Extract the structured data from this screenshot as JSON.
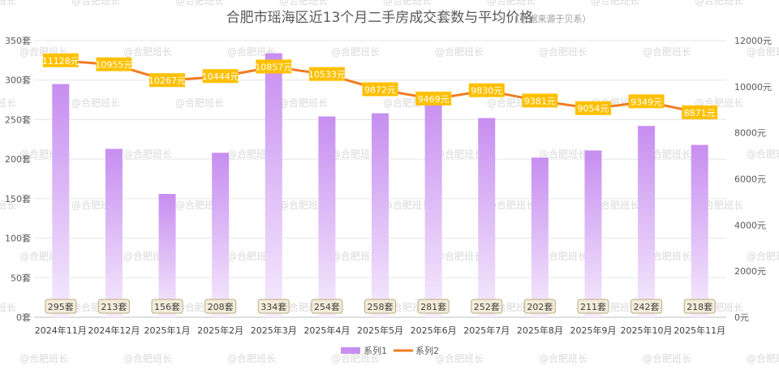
{
  "watermark": "@合肥班长",
  "chart_data": {
    "type": "bar+line",
    "title": "合肥市瑶海区近13个月二手房成交套数与平均价格",
    "subtitle": "（数据来源于贝系）",
    "categories": [
      "2024年11月",
      "2024年12月",
      "2025年1月",
      "2025年2月",
      "2025年3月",
      "2025年4月",
      "2025年5月",
      "2025年6月",
      "2025年7月",
      "2025年8月",
      "2025年9月",
      "2025年10月",
      "2025年11月"
    ],
    "series": [
      {
        "name": "系列1",
        "type": "bar",
        "axis": "left",
        "values": [
          295,
          213,
          156,
          208,
          334,
          254,
          258,
          281,
          252,
          202,
          211,
          242,
          218
        ],
        "label_suffix": "套",
        "color": "#c78ef0"
      },
      {
        "name": "系列2",
        "type": "line",
        "axis": "right",
        "values": [
          11128,
          10955,
          10267,
          10444,
          10857,
          10533,
          9872,
          9469,
          9830,
          9381,
          9054,
          9349,
          8871
        ],
        "label_suffix": "元",
        "color": "#f07c22",
        "label_bg": "#ffc000"
      }
    ],
    "left_axis": {
      "min": 0,
      "max": 350,
      "step": 50,
      "suffix": "套",
      "ticks": [
        "0套",
        "50套",
        "100套",
        "150套",
        "200套",
        "250套",
        "300套",
        "350套"
      ]
    },
    "right_axis": {
      "min": 0,
      "max": 12000,
      "step": 2000,
      "suffix": "元",
      "ticks": [
        "0元",
        "2000元",
        "4000元",
        "6000元",
        "8000元",
        "10000元",
        "12000元"
      ]
    },
    "grid": true,
    "legend_position": "bottom"
  }
}
